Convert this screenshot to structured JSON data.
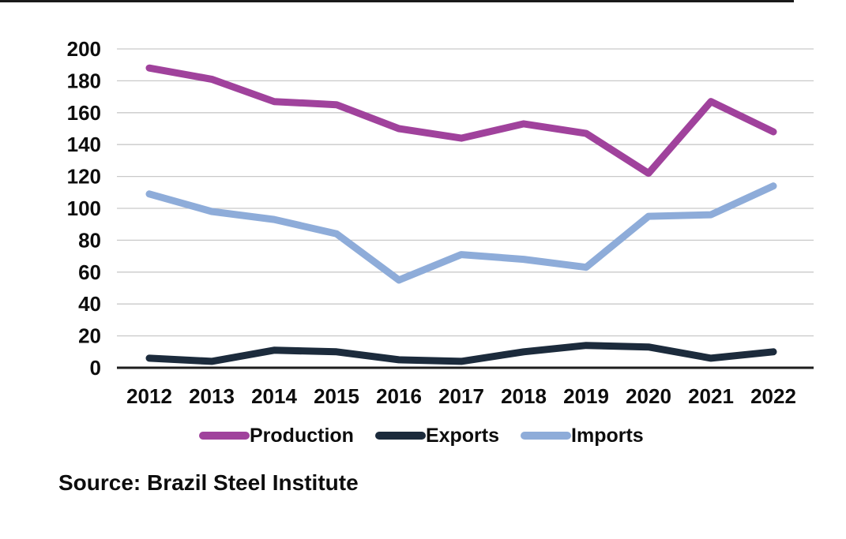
{
  "source": "Source: Brazil Steel Institute",
  "chart_data": {
    "type": "line",
    "x": [
      "2012",
      "2013",
      "2014",
      "2015",
      "2016",
      "2017",
      "2018",
      "2019",
      "2020",
      "2021",
      "2022"
    ],
    "series": [
      {
        "name": "Production",
        "color": "#a0429c",
        "values": [
          188,
          181,
          167,
          165,
          150,
          144,
          153,
          147,
          122,
          167,
          148
        ]
      },
      {
        "name": "Exports",
        "color": "#1c2b3c",
        "values": [
          6,
          4,
          11,
          10,
          5,
          4,
          10,
          14,
          13,
          6,
          10
        ]
      },
      {
        "name": "Imports",
        "color": "#8eacd9",
        "values": [
          109,
          98,
          93,
          84,
          55,
          71,
          68,
          63,
          95,
          96,
          114
        ]
      }
    ],
    "title": "",
    "xlabel": "",
    "ylabel": "",
    "ylim": [
      0,
      200
    ],
    "yticks": [
      200,
      180,
      160,
      140,
      120,
      100,
      80,
      60,
      40,
      20,
      0
    ],
    "grid": true,
    "legend_position": "bottom",
    "axis_color": "#1d1d1d",
    "gridline_color": "#c9c9c9"
  }
}
